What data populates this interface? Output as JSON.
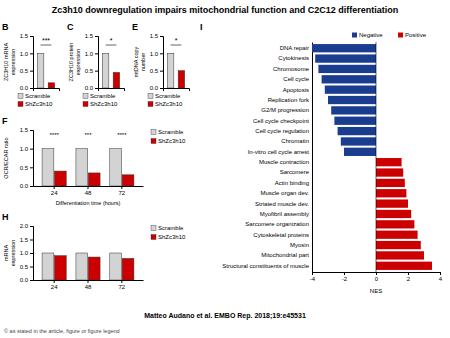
{
  "title": "Zc3h10 downregulation impairs mitochondrial function and C2C12 differentiation",
  "annotations": [
    "Matteo Audano et al. EMBO Rep. 2018;19:e45531",
    "© as stated in the article, figure or figure legend"
  ],
  "chart_data": [
    {
      "type": "bar",
      "title": "B",
      "categories": [
        "Scramble",
        "ShZc3h10"
      ],
      "values": [
        1.0,
        0.15
      ],
      "colors": [
        "#d3d3d3",
        "#cc0000"
      ],
      "ylabel": "ZC3H10 mRNA\nexpression",
      "ylim": [
        0,
        1.5
      ],
      "yticks": [
        {
          "value": 0,
          "label": "0.0"
        },
        {
          "value": 0.5,
          "label": "0.5"
        },
        {
          "value": 1,
          "label": "1.0"
        },
        {
          "value": 1.5,
          "label": "1.5"
        }
      ],
      "annotations": [
        "***"
      ],
      "tick_labels": "y",
      "legend": "bottom"
    },
    {
      "type": "bar",
      "title": "C",
      "categories": [
        "Scramble",
        "ShZc3h10"
      ],
      "values": [
        1.0,
        0.45
      ],
      "colors": [
        "#d3d3d3",
        "#cc0000"
      ],
      "ylabel": "ZC3H10 protein\nexpression",
      "ylim": [
        0,
        1.5
      ],
      "yticks": [
        {
          "value": 0,
          "label": "0.0"
        },
        {
          "value": 0.5,
          "label": "0.5"
        },
        {
          "value": 1,
          "label": "1.0"
        },
        {
          "value": 1.5,
          "label": "1.5"
        }
      ],
      "annotations": [
        "*"
      ],
      "tick_labels": "y",
      "legend": "bottom"
    },
    {
      "type": "bar",
      "title": "E",
      "categories": [
        "Scramble",
        "ShZc3h10"
      ],
      "values": [
        1.0,
        0.5
      ],
      "colors": [
        "#d3d3d3",
        "#cc0000"
      ],
      "ylabel": "mtDNA copy\nnumber",
      "ylim": [
        0,
        1.5
      ],
      "yticks": [
        {
          "value": 0,
          "label": "0.0"
        },
        {
          "value": 0.5,
          "label": "0.5"
        },
        {
          "value": 1,
          "label": "1.0"
        },
        {
          "value": 1.5,
          "label": "1.5"
        }
      ],
      "annotations": [
        "*"
      ],
      "tick_labels": "y",
      "legend": "bottom"
    },
    {
      "type": "bar",
      "title": "F",
      "categories": [
        "24",
        "48",
        "72"
      ],
      "series": [
        {
          "name": "Scramble",
          "color": "#d3d3d3",
          "values": [
            1.0,
            1.0,
            1.0
          ]
        },
        {
          "name": "ShZc3h10",
          "color": "#cc0000",
          "values": [
            0.4,
            0.35,
            0.3
          ]
        }
      ],
      "xlabel": "Differentiation time (hours)",
      "ylabel": "OCR/ECAR ratio",
      "ylim": [
        0,
        1.5
      ],
      "yticks": [
        {
          "value": 0,
          "label": "0.0"
        },
        {
          "value": 0.5,
          "label": "0.5"
        },
        {
          "value": 1,
          "label": "1.0"
        },
        {
          "value": 1.5,
          "label": "1.5"
        }
      ],
      "annotations": [
        "****",
        "***",
        "****"
      ],
      "legend": "right"
    },
    {
      "type": "bar",
      "title": "H",
      "categories": [
        "24",
        "48",
        "72"
      ],
      "series": [
        {
          "name": "Scramble",
          "color": "#d3d3d3",
          "values": [
            1.0,
            1.0,
            1.0
          ]
        },
        {
          "name": "ShZc3h10",
          "color": "#cc0000",
          "values": [
            0.9,
            0.85,
            0.8
          ]
        }
      ],
      "ylabel": "mRNA\nexpression",
      "ylim": [
        0,
        2.0
      ],
      "yticks": [
        {
          "value": 0,
          "label": "0.0"
        },
        {
          "value": 0.5,
          "label": "0.5"
        },
        {
          "value": 1,
          "label": "1.0"
        },
        {
          "value": 1.5,
          "label": "1.5"
        },
        {
          "value": 2,
          "label": "2.0"
        }
      ],
      "legend": "right"
    },
    {
      "type": "bar",
      "orientation": "horizontal",
      "title": "I",
      "categories": [
        "Structural constituents of muscle",
        "Mitochondrial part",
        "Myosin",
        "Cytoskeletal proteins",
        "Sarcomere organization",
        "Myofibril assembly",
        "Striated muscle dev.",
        "Muscle organ dev.",
        "Actin binding",
        "Sarcomere",
        "Muscle contraction",
        "In-vitro cell cycle arrest",
        "Chromatin",
        "Cell cycle regulation",
        "Cell cycle checkpoint",
        "G2/M progression",
        "Replication fork",
        "Apoptosis",
        "Cell cycle",
        "Chromosome",
        "Cytokinesis",
        "DNA repair"
      ],
      "series": [
        {
          "name": "Negative",
          "color": "#1a3d8f",
          "values": [
            null,
            null,
            null,
            null,
            null,
            null,
            null,
            null,
            null,
            null,
            null,
            -2.0,
            -2.2,
            -2.4,
            -2.6,
            -2.8,
            -3.0,
            -3.2,
            -3.4,
            -3.6,
            -3.8,
            -4.0
          ]
        },
        {
          "name": "Positive",
          "color": "#cc0000",
          "values": [
            3.5,
            3.0,
            2.8,
            2.6,
            2.4,
            2.2,
            2.0,
            1.9,
            1.8,
            1.7,
            1.6,
            null,
            null,
            null,
            null,
            null,
            null,
            null,
            null,
            null,
            null,
            null
          ]
        }
      ],
      "xlabel": "NES",
      "xlim": [
        -4,
        4
      ],
      "xticks": [
        -4,
        -2,
        0,
        2,
        4
      ],
      "legend": "top"
    }
  ]
}
